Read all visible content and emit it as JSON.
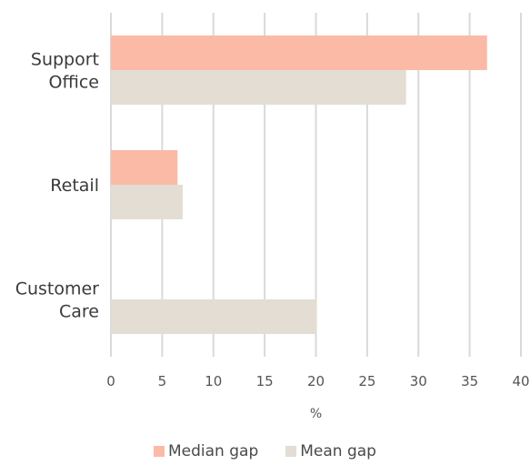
{
  "chart_data": {
    "type": "bar",
    "orientation": "horizontal",
    "categories": [
      [
        "Support",
        "Office"
      ],
      [
        "Retail"
      ],
      [
        "Customer",
        "Care"
      ]
    ],
    "series": [
      {
        "name": "Median gap",
        "color": "#fbbaa6",
        "values": [
          36.7,
          6.5,
          null
        ]
      },
      {
        "name": "Mean gap",
        "color": "#e3ddd3",
        "values": [
          28.8,
          7.0,
          20.1
        ]
      }
    ],
    "xlim": [
      0,
      40
    ],
    "xticks": [
      0,
      5,
      10,
      15,
      20,
      25,
      30,
      35,
      40
    ],
    "xlabel": "%",
    "grid": "vertical",
    "legend_position": "bottom-center"
  }
}
